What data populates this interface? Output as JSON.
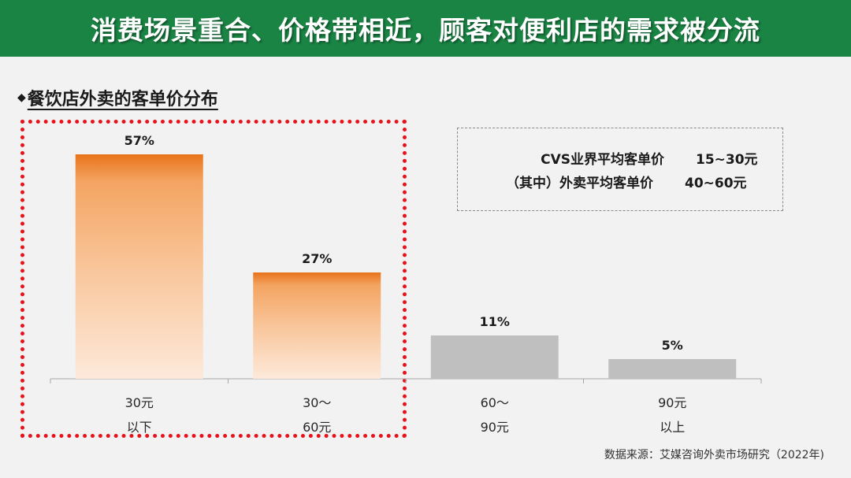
{
  "header": {
    "title": "消费场景重合、价格带相近，顾客对便利店的需求被分流"
  },
  "section": {
    "title": "餐饮店外卖的客单价分布",
    "bullet": "◆"
  },
  "info_box": {
    "rows": [
      {
        "label": "CVS业界平均客单价",
        "value": "15~30元"
      },
      {
        "label": "（其中）外卖平均客单价",
        "value": "40~60元"
      }
    ]
  },
  "source": "数据来源：艾媒咨询外卖市场研究（2022年)",
  "colors": {
    "header": "#1a8444",
    "highlight_bar_top": "#e8731a",
    "highlight_bar_bottom": "#fde9da",
    "gray_bar": "#bfbfbf",
    "dotted_frame": "#e8121b"
  },
  "chart_data": {
    "type": "bar",
    "categories": [
      [
        "30元",
        "以下"
      ],
      [
        "30～",
        "60元"
      ],
      [
        "60～",
        "90元"
      ],
      [
        "90元",
        "以上"
      ]
    ],
    "values": [
      57,
      27,
      11,
      5
    ],
    "value_labels": [
      "57%",
      "27%",
      "11%",
      "5%"
    ],
    "highlighted": [
      true,
      true,
      false,
      false
    ],
    "ylim": [
      0,
      60
    ],
    "grid": false,
    "legend": "none"
  }
}
